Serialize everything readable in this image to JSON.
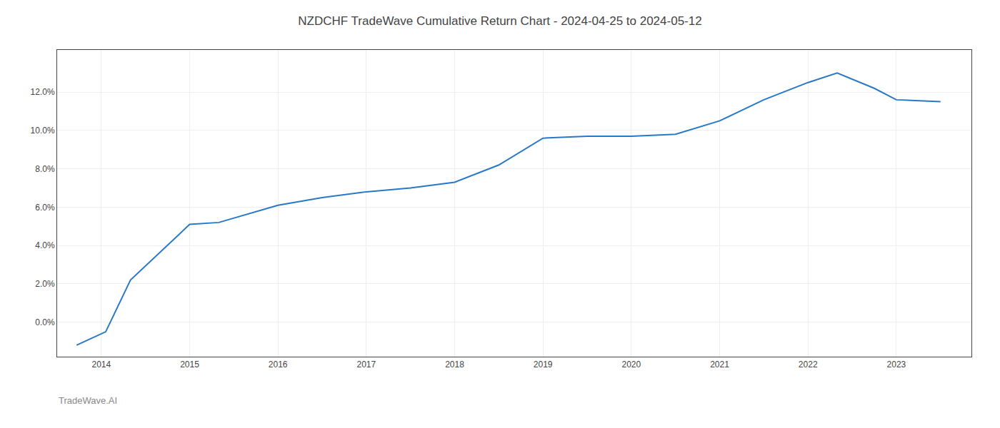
{
  "chart_data": {
    "type": "line",
    "title": "NZDCHF TradeWave Cumulative Return Chart - 2024-04-25 to 2024-05-12",
    "annotations": [
      "TradeWave.AI"
    ],
    "x": [
      2013.72,
      2014.05,
      2014.33,
      2015.0,
      2015.33,
      2016.0,
      2016.5,
      2017.0,
      2017.5,
      2018.0,
      2018.5,
      2019.0,
      2019.5,
      2020.0,
      2020.5,
      2021.0,
      2021.5,
      2022.0,
      2022.33,
      2022.75,
      2023.0,
      2023.5
    ],
    "values": [
      -0.012,
      -0.005,
      0.022,
      0.051,
      0.052,
      0.061,
      0.065,
      0.068,
      0.07,
      0.073,
      0.082,
      0.096,
      0.097,
      0.097,
      0.098,
      0.105,
      0.116,
      0.125,
      0.13,
      0.122,
      0.116,
      0.115
    ],
    "color": "#2878c8",
    "xlim": [
      2013.5,
      2023.85
    ],
    "xticks": [
      2014,
      2015,
      2016,
      2017,
      2018,
      2019,
      2020,
      2021,
      2022,
      2023
    ],
    "ylim": [
      -0.018,
      0.142
    ],
    "yticks": [
      {
        "value": 0.0,
        "label": "0.0%"
      },
      {
        "value": 0.02,
        "label": "2.0%"
      },
      {
        "value": 0.04,
        "label": "4.0%"
      },
      {
        "value": 0.06,
        "label": "6.0%"
      },
      {
        "value": 0.08,
        "label": "8.0%"
      },
      {
        "value": 0.1,
        "label": "10.0%"
      },
      {
        "value": 0.12,
        "label": "12.0%"
      }
    ],
    "grid": true
  }
}
